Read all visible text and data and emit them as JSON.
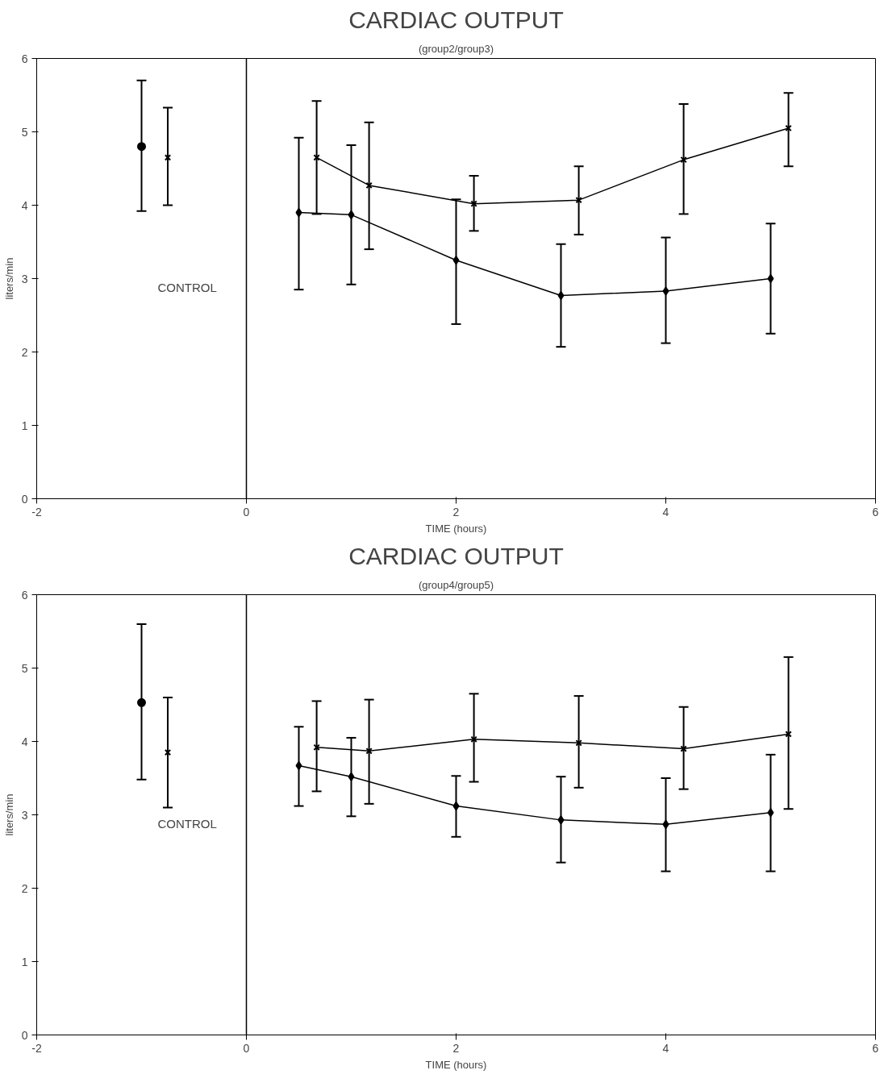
{
  "chart_data": [
    {
      "type": "line",
      "title": "CARDIAC OUTPUT",
      "subtitle": "(group2/group3)",
      "xlabel": "TIME (hours)",
      "ylabel": "liters/min",
      "xlim": [
        -2,
        6
      ],
      "ylim": [
        0,
        6
      ],
      "xticks": [
        -2,
        0,
        2,
        4,
        6
      ],
      "yticks": [
        0,
        1,
        2,
        3,
        4,
        5,
        6
      ],
      "grid": false,
      "ref_lines": [
        {
          "axis": "x",
          "value": 0,
          "label": null,
          "color": "#000000"
        }
      ],
      "annotations": [
        "CONTROL"
      ],
      "series": [
        {
          "type": "scatter",
          "marker": "circle",
          "color": "#000000",
          "x": [
            -1
          ],
          "values": [
            4.8
          ],
          "errors": [
            [
              3.92,
              5.7
            ]
          ]
        },
        {
          "type": "scatter",
          "marker": "cross",
          "color": "#000000",
          "x": [
            -0.75
          ],
          "values": [
            4.65
          ],
          "errors": [
            [
              4.0,
              5.33
            ]
          ]
        },
        {
          "marker": "diamond",
          "color": "#000000",
          "x": [
            0.5,
            1,
            2,
            3,
            4,
            5
          ],
          "values": [
            3.9,
            3.87,
            3.25,
            2.77,
            2.83,
            3.0
          ],
          "errors": [
            [
              2.85,
              4.92
            ],
            [
              2.92,
              4.82
            ],
            [
              2.38,
              4.08
            ],
            [
              2.07,
              3.47
            ],
            [
              2.12,
              3.56
            ],
            [
              2.25,
              3.75
            ]
          ]
        },
        {
          "marker": "cross",
          "color": "#000000",
          "x": [
            0.67,
            1.17,
            2.17,
            3.17,
            4.17,
            5.17
          ],
          "values": [
            4.65,
            4.27,
            4.02,
            4.07,
            4.62,
            5.05
          ],
          "errors": [
            [
              3.88,
              5.42
            ],
            [
              3.4,
              5.13
            ],
            [
              3.65,
              4.4
            ],
            [
              3.6,
              4.53
            ],
            [
              3.88,
              5.38
            ],
            [
              4.53,
              5.53
            ]
          ]
        }
      ]
    },
    {
      "type": "line",
      "title": "CARDIAC OUTPUT",
      "subtitle": "(group4/group5)",
      "xlabel": "TIME (hours)",
      "ylabel": "liters/min",
      "xlim": [
        -2,
        6
      ],
      "ylim": [
        0,
        6
      ],
      "xticks": [
        -2,
        0,
        2,
        4,
        6
      ],
      "yticks": [
        0,
        1,
        2,
        3,
        4,
        5,
        6
      ],
      "grid": false,
      "ref_lines": [
        {
          "axis": "x",
          "value": 0,
          "label": null,
          "color": "#000000"
        }
      ],
      "annotations": [
        "CONTROL"
      ],
      "series": [
        {
          "type": "scatter",
          "marker": "circle",
          "color": "#000000",
          "x": [
            -1
          ],
          "values": [
            4.53
          ],
          "errors": [
            [
              3.48,
              5.6
            ]
          ]
        },
        {
          "type": "scatter",
          "marker": "cross",
          "color": "#000000",
          "x": [
            -0.75
          ],
          "values": [
            3.85
          ],
          "errors": [
            [
              3.1,
              4.6
            ]
          ]
        },
        {
          "marker": "diamond",
          "color": "#000000",
          "x": [
            0.5,
            1,
            2,
            3,
            4,
            5
          ],
          "values": [
            3.67,
            3.52,
            3.12,
            2.93,
            2.87,
            3.03
          ],
          "errors": [
            [
              3.12,
              4.2
            ],
            [
              2.98,
              4.05
            ],
            [
              2.7,
              3.53
            ],
            [
              2.35,
              3.52
            ],
            [
              2.23,
              3.5
            ],
            [
              2.23,
              3.82
            ]
          ]
        },
        {
          "marker": "cross",
          "color": "#000000",
          "x": [
            0.67,
            1.17,
            2.17,
            3.17,
            4.17,
            5.17
          ],
          "values": [
            3.92,
            3.87,
            4.03,
            3.98,
            3.9,
            4.1
          ],
          "errors": [
            [
              3.32,
              4.55
            ],
            [
              3.15,
              4.57
            ],
            [
              3.45,
              4.65
            ],
            [
              3.37,
              4.62
            ],
            [
              3.35,
              4.47
            ],
            [
              3.08,
              5.15
            ]
          ]
        }
      ]
    }
  ]
}
